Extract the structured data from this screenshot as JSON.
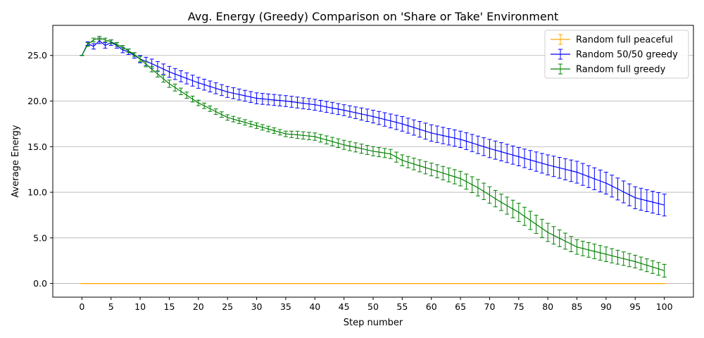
{
  "chart_data": {
    "type": "line",
    "title": "Avg. Energy (Greedy) Comparison on 'Share or Take' Environment",
    "xlabel": "Step number",
    "ylabel": "Average Energy",
    "xlim": [
      -5,
      105
    ],
    "ylim": [
      -1.5,
      28.3
    ],
    "xticks": [
      0,
      5,
      10,
      15,
      20,
      25,
      30,
      35,
      40,
      45,
      50,
      55,
      60,
      65,
      70,
      75,
      80,
      85,
      90,
      95,
      100
    ],
    "yticks": [
      0.0,
      5.0,
      10.0,
      15.0,
      20.0,
      25.0
    ],
    "ytick_labels": [
      "0.0",
      "5.0",
      "10.0",
      "15.0",
      "20.0",
      "25.0"
    ],
    "grid": "y",
    "legend_position": "top-right",
    "error_bars": true,
    "series": [
      {
        "name": "Random full peaceful",
        "color": "#ffa500",
        "x": [
          0,
          100
        ],
        "y": [
          0,
          0
        ],
        "err": [
          0,
          0
        ]
      },
      {
        "name": "Random 50/50 greedy",
        "color": "#0000ff",
        "x": [
          0,
          1,
          2,
          3,
          4,
          5,
          6,
          7,
          8,
          9,
          10,
          12,
          15,
          20,
          25,
          30,
          35,
          40,
          45,
          50,
          55,
          60,
          65,
          70,
          75,
          80,
          85,
          90,
          95,
          100
        ],
        "y": [
          25.0,
          26.3,
          26.0,
          26.6,
          26.1,
          26.4,
          26.1,
          25.6,
          25.4,
          25.0,
          24.6,
          24.1,
          23.2,
          22.0,
          21.0,
          20.3,
          20.0,
          19.6,
          19.0,
          18.3,
          17.5,
          16.5,
          15.8,
          14.8,
          13.9,
          13.0,
          12.2,
          11.0,
          9.4,
          8.6
        ],
        "err": [
          0,
          0.2,
          0.3,
          0.3,
          0.3,
          0.3,
          0.3,
          0.3,
          0.3,
          0.3,
          0.4,
          0.5,
          0.6,
          0.6,
          0.6,
          0.6,
          0.6,
          0.6,
          0.6,
          0.7,
          0.8,
          0.9,
          0.9,
          1.0,
          1.0,
          1.1,
          1.2,
          1.2,
          1.2,
          1.2
        ]
      },
      {
        "name": "Random full greedy",
        "color": "#008000",
        "x": [
          0,
          1,
          2,
          3,
          4,
          5,
          6,
          7,
          8,
          9,
          10,
          12,
          15,
          20,
          25,
          30,
          35,
          37,
          40,
          45,
          50,
          53,
          55,
          60,
          65,
          68,
          70,
          72,
          75,
          80,
          85,
          90,
          95,
          100
        ],
        "y": [
          25.0,
          26.2,
          26.7,
          26.9,
          26.7,
          26.5,
          26.2,
          25.9,
          25.5,
          25.1,
          24.6,
          23.5,
          21.9,
          19.8,
          18.2,
          17.3,
          16.4,
          16.3,
          16.1,
          15.2,
          14.5,
          14.2,
          13.5,
          12.5,
          11.5,
          10.5,
          9.7,
          8.9,
          7.8,
          5.6,
          4.0,
          3.2,
          2.4,
          1.4
        ],
        "err": [
          0,
          0.2,
          0.2,
          0.2,
          0.2,
          0.2,
          0.2,
          0.2,
          0.2,
          0.2,
          0.3,
          0.3,
          0.4,
          0.3,
          0.3,
          0.3,
          0.3,
          0.4,
          0.4,
          0.5,
          0.5,
          0.5,
          0.6,
          0.7,
          0.8,
          0.9,
          0.9,
          0.9,
          1.0,
          1.0,
          0.8,
          0.8,
          0.7,
          0.7
        ]
      }
    ]
  }
}
